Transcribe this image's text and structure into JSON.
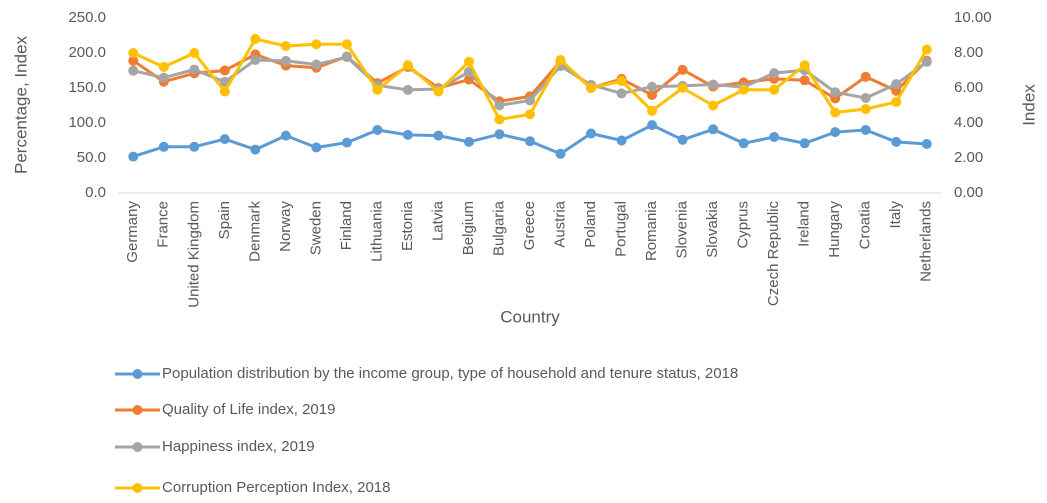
{
  "chart_data": {
    "type": "line",
    "x_label": "Country",
    "y_label": "Percentage, Index",
    "y2_label": "Index",
    "categories": [
      "Germany",
      "France",
      "United Kingdom",
      "Spain",
      "Denmark",
      "Norway",
      "Sweden",
      "Finland",
      "Lithuania",
      "Estonia",
      "Latvia",
      "Belgium",
      "Bulgaria",
      "Greece",
      "Austria",
      "Poland",
      "Portugal",
      "Romania",
      "Slovenia",
      "Slovakia",
      "Cyprus",
      "Czech Republic",
      "Ireland",
      "Hungary",
      "Croatia",
      "Italy",
      "Netherlands"
    ],
    "ylim": [
      0,
      250
    ],
    "yticks": [
      {
        "value": 0,
        "label": "0.0"
      },
      {
        "value": 50,
        "label": "50.0"
      },
      {
        "value": 100,
        "label": "100.0"
      },
      {
        "value": 150,
        "label": "150.0"
      },
      {
        "value": 200,
        "label": "200.0"
      },
      {
        "value": 250,
        "label": "250.0"
      }
    ],
    "y2lim": [
      0,
      10
    ],
    "y2ticks": [
      {
        "value": 0,
        "label": "0.00"
      },
      {
        "value": 2,
        "label": "2.00"
      },
      {
        "value": 4,
        "label": "4.00"
      },
      {
        "value": 6,
        "label": "6.00"
      },
      {
        "value": 8,
        "label": "8.00"
      },
      {
        "value": 10,
        "label": "10.00"
      }
    ],
    "grid": false,
    "legend": "bottom",
    "series": [
      {
        "name": "Population distribution by the income group, type of household and tenure status, 2018",
        "color": "#5b9bd5",
        "axis": "y",
        "values": [
          52,
          66,
          66,
          77,
          62,
          82,
          65,
          72,
          90,
          83,
          82,
          73,
          84,
          74,
          56,
          85,
          75,
          97,
          76,
          91,
          71,
          80,
          71,
          87,
          90,
          73,
          70
        ]
      },
      {
        "name": "Quality of Life index, 2019",
        "color": "#ed7d31",
        "axis": "y",
        "values": [
          189,
          159,
          171,
          175,
          198,
          182,
          179,
          195,
          157,
          180,
          150,
          162,
          131,
          138,
          188,
          150,
          163,
          140,
          176,
          152,
          158,
          163,
          161,
          135,
          166,
          146,
          189
        ]
      },
      {
        "name": "Happiness index, 2019",
        "color": "#a5a5a5",
        "axis": "y2",
        "values": [
          6.99,
          6.59,
          7.05,
          6.35,
          7.6,
          7.55,
          7.34,
          7.77,
          6.15,
          5.89,
          5.94,
          6.92,
          5.01,
          5.29,
          7.25,
          6.18,
          5.69,
          6.07,
          6.12,
          6.2,
          6.05,
          6.85,
          7.02,
          5.76,
          5.43,
          6.22,
          7.49
        ]
      },
      {
        "name": "Corruption Perception Index, 2018",
        "color": "#ffc000",
        "axis": "y2",
        "values": [
          8.0,
          7.2,
          8.0,
          5.8,
          8.8,
          8.4,
          8.5,
          8.5,
          5.9,
          7.3,
          5.8,
          7.5,
          4.2,
          4.5,
          7.6,
          6.0,
          6.4,
          4.7,
          6.0,
          5.0,
          5.9,
          5.9,
          7.3,
          4.6,
          4.8,
          5.2,
          8.2
        ]
      }
    ]
  }
}
